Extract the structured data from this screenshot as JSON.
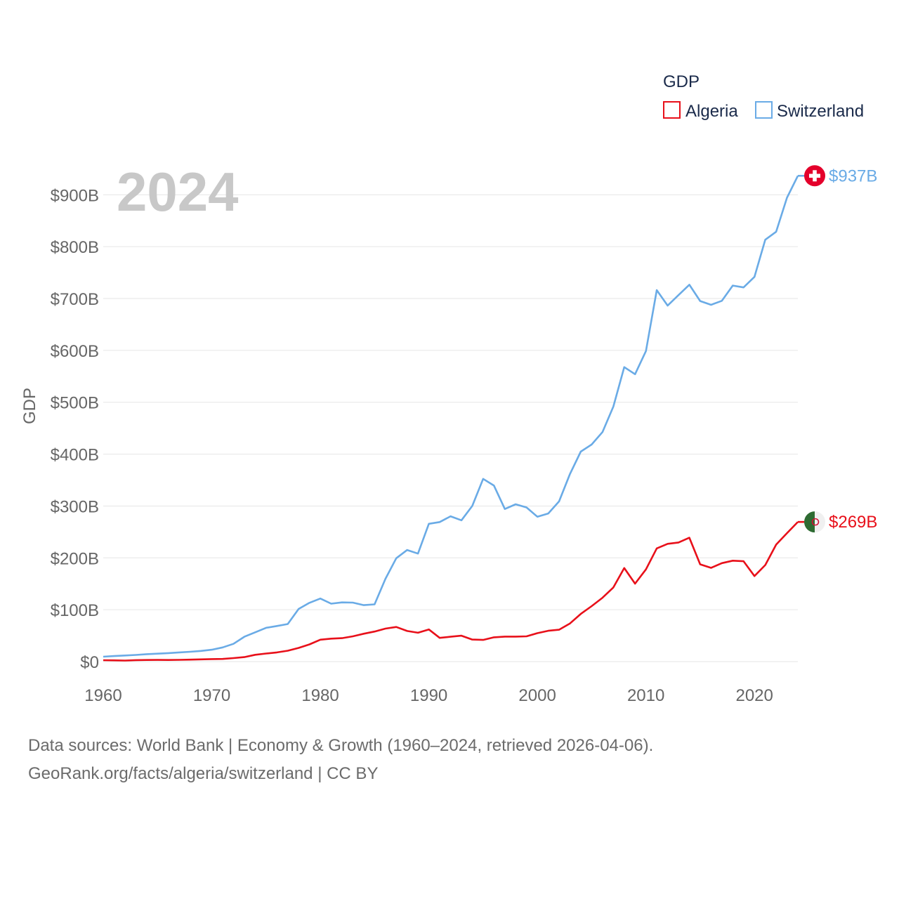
{
  "chart_data": {
    "type": "line",
    "year_label": "2024",
    "ylabel": "GDP",
    "legend_title": "GDP",
    "legend_position": "top-right",
    "xlim": [
      1960,
      2024
    ],
    "ylim": [
      0,
      937
    ],
    "y_unit": "billion USD",
    "x_ticks": [
      "1960",
      "1970",
      "1980",
      "1990",
      "2000",
      "2010",
      "2020"
    ],
    "y_ticks": [
      {
        "value": 0,
        "label": "$0"
      },
      {
        "value": 100,
        "label": "$100B"
      },
      {
        "value": 200,
        "label": "$200B"
      },
      {
        "value": 300,
        "label": "$300B"
      },
      {
        "value": 400,
        "label": "$400B"
      },
      {
        "value": 500,
        "label": "$500B"
      },
      {
        "value": 600,
        "label": "$600B"
      },
      {
        "value": 700,
        "label": "$700B"
      },
      {
        "value": 800,
        "label": "$800B"
      },
      {
        "value": 900,
        "label": "$900B"
      }
    ],
    "x": [
      1960,
      1961,
      1962,
      1963,
      1964,
      1965,
      1966,
      1967,
      1968,
      1969,
      1970,
      1971,
      1972,
      1973,
      1974,
      1975,
      1976,
      1977,
      1978,
      1979,
      1980,
      1981,
      1982,
      1983,
      1984,
      1985,
      1986,
      1987,
      1988,
      1989,
      1990,
      1991,
      1992,
      1993,
      1994,
      1995,
      1996,
      1997,
      1998,
      1999,
      2000,
      2001,
      2002,
      2003,
      2004,
      2005,
      2006,
      2007,
      2008,
      2009,
      2010,
      2011,
      2012,
      2013,
      2014,
      2015,
      2016,
      2017,
      2018,
      2019,
      2020,
      2021,
      2022,
      2023,
      2024
    ],
    "series": [
      {
        "name": "Algeria",
        "color": "#e8101a",
        "end_label": "$269B",
        "flag_icon": "algeria-flag-icon",
        "values": [
          2.7,
          2.4,
          2.0,
          2.8,
          3.1,
          3.2,
          3.1,
          3.4,
          3.8,
          4.3,
          4.9,
          5.1,
          6.8,
          8.7,
          13.2,
          15.6,
          17.7,
          21.0,
          26.4,
          33.2,
          42.3,
          44.3,
          45.2,
          48.8,
          53.7,
          57.9,
          63.7,
          66.7,
          59.1,
          55.6,
          62.0,
          45.7,
          48.0,
          49.9,
          42.5,
          41.8,
          46.9,
          48.2,
          48.2,
          48.8,
          54.8,
          59.4,
          61.5,
          73.5,
          91.9,
          107.0,
          123.1,
          143.0,
          180.4,
          150.3,
          177.8,
          218.3,
          227.1,
          229.7,
          238.9,
          187.5,
          180.8,
          189.9,
          194.6,
          193.5,
          164.9,
          186.2,
          225.6,
          247.6,
          269.3
        ]
      },
      {
        "name": "Switzerland",
        "color": "#6aabe6",
        "end_label": "$937B",
        "flag_icon": "switzerland-flag-icon",
        "values": [
          9.5,
          10.7,
          11.8,
          12.9,
          14.3,
          15.3,
          16.4,
          17.7,
          18.9,
          20.6,
          22.9,
          27.3,
          34.2,
          47.9,
          56.5,
          65.1,
          68.7,
          72.5,
          101.5,
          113.4,
          121.6,
          111.7,
          114.1,
          113.7,
          108.8,
          110.4,
          159.6,
          199.3,
          215.2,
          208.3,
          265.6,
          269.0,
          280.1,
          272.4,
          300.1,
          352.3,
          339.3,
          294.2,
          303.3,
          297.2,
          279.3,
          285.6,
          308.9,
          361.6,
          404.8,
          418.5,
          442.5,
          491.7,
          567.8,
          554.1,
          598.8,
          716.2,
          686.4,
          706.5,
          726.6,
          695.1,
          687.8,
          695.6,
          725.0,
          721.4,
          741.8,
          813.4,
          828.8,
          894.4,
          936.6
        ]
      }
    ]
  },
  "source": {
    "line1": "Data sources: World Bank | Economy & Growth (1960–2024, retrieved 2026-04-06).",
    "line2": "GeoRank.org/facts/algeria/switzerland | CC BY"
  },
  "colors": {
    "swiss_red": "#e4002b",
    "algeria_green": "#2e6b32",
    "algeria_white": "#f0f0f0"
  }
}
